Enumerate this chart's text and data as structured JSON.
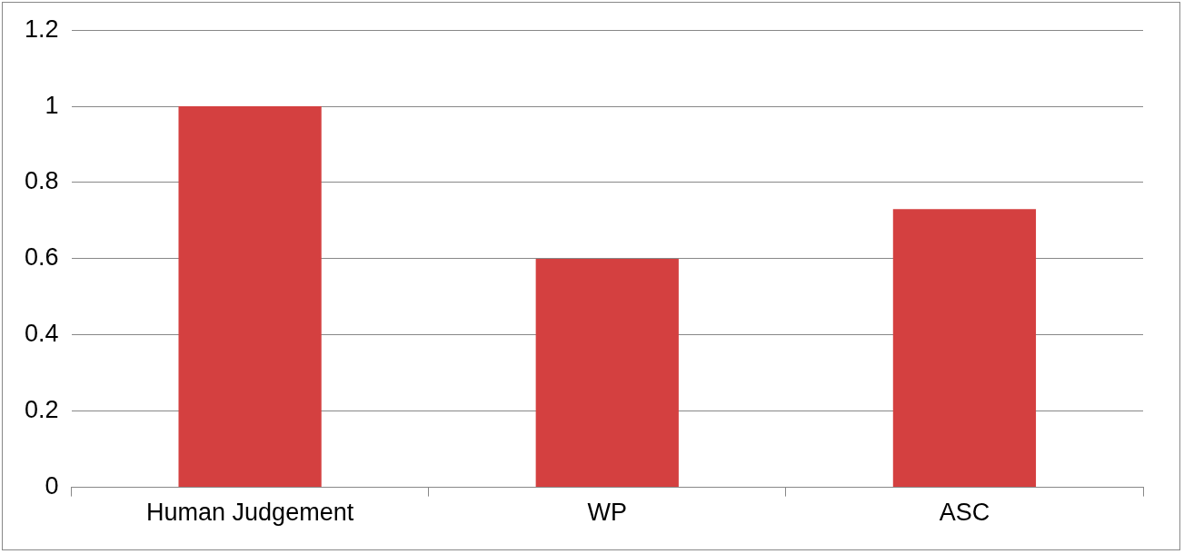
{
  "chart_data": {
    "type": "bar",
    "categories": [
      "Human Judgement",
      "WP",
      "ASC"
    ],
    "values": [
      1,
      0.6,
      0.73
    ],
    "color": "#d44040",
    "ylim": [
      0,
      1.2
    ],
    "yticks": [
      0,
      0.2,
      0.4,
      0.6,
      0.8,
      1,
      1.2
    ],
    "grid": "y",
    "legend": false
  }
}
